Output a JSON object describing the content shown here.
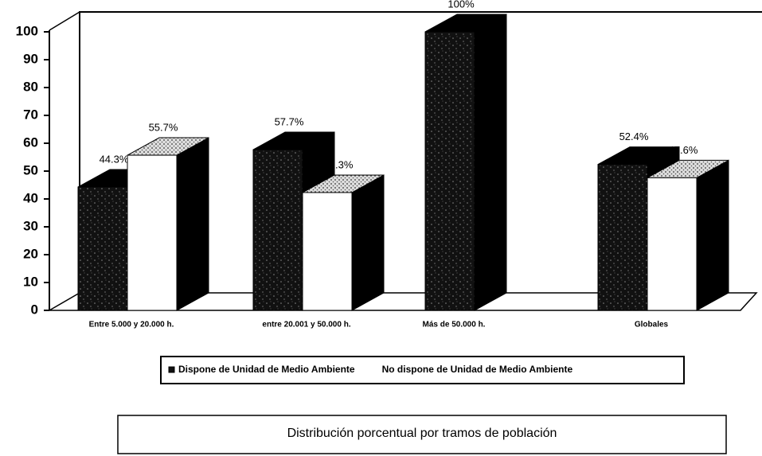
{
  "chart_data": {
    "type": "bar",
    "title": "Distribución porcentual por tramos de población",
    "categories": [
      "Entre 5.000 y 20.000 h.",
      "entre 20.001 y 50.000 h.",
      "Más de 50.000 h.",
      "Globales"
    ],
    "series": [
      {
        "name": "Dispone de Unidad de Medio Ambiente",
        "color": "#111111",
        "values": [
          44.3,
          57.7,
          100,
          52.4
        ],
        "value_labels": [
          "44.3%",
          "57.7%",
          "100%",
          "52.4%"
        ]
      },
      {
        "name": "No dispone de Unidad de Medio Ambiente",
        "color": "#ffffff",
        "values": [
          55.7,
          42.3,
          null,
          47.6
        ],
        "value_labels": [
          "55.7%",
          "42.3%",
          null,
          "47.6%"
        ]
      }
    ],
    "ylim": [
      0,
      100
    ],
    "yticks": [
      0,
      10,
      20,
      30,
      40,
      50,
      60,
      70,
      80,
      90,
      100
    ],
    "legend": "bottom"
  }
}
